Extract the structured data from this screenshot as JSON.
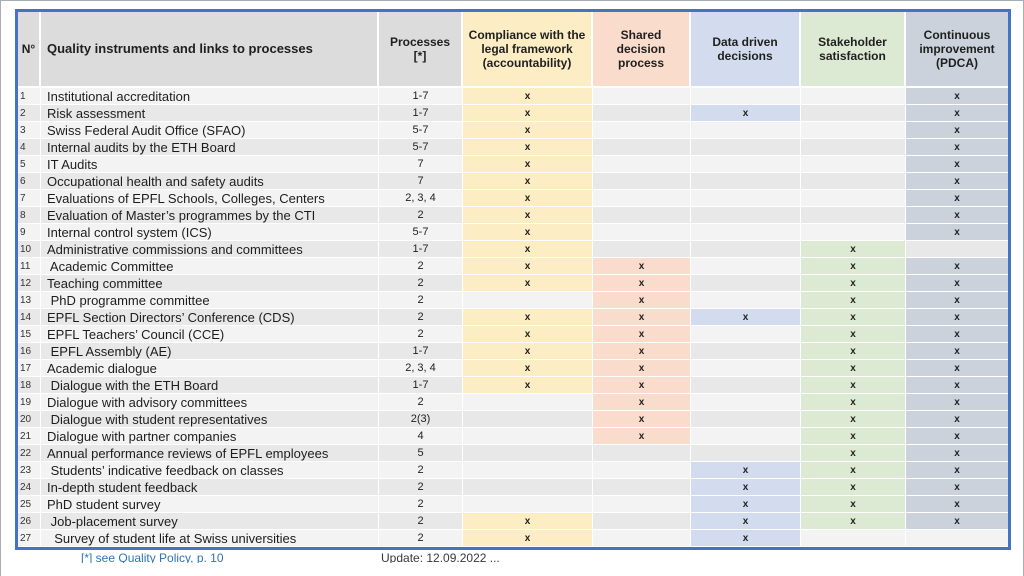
{
  "colors": {
    "table_border": "#4472C4",
    "link_blue": "#2E74B5",
    "compliance": "#FCEDC5",
    "shared": "#F9DCCB",
    "data_driven": "#D3DCEE",
    "stakeholder": "#DCEAD3",
    "continuous": "#CBD2DB"
  },
  "table": {
    "mark_glyph": "x",
    "columns": [
      {
        "key": "n",
        "label": "N°"
      },
      {
        "key": "name",
        "label": "Quality instruments and links to processes"
      },
      {
        "key": "processes",
        "label": "Processes\n[*]"
      },
      {
        "key": "compliance",
        "label": "Compliance with the legal framework (accountability)",
        "color": "#FCEDC5"
      },
      {
        "key": "shared",
        "label": "Shared decision process",
        "color": "#F9DCCB"
      },
      {
        "key": "data",
        "label": "Data driven decisions",
        "color": "#D3DCEE"
      },
      {
        "key": "stakeholder",
        "label": "Stakeholder satisfaction",
        "color": "#DCEAD3"
      },
      {
        "key": "continuous",
        "label": "Continuous improvement (PDCA)",
        "color": "#CBD2DB"
      }
    ],
    "rows": [
      {
        "n": "1",
        "name": "Institutional accreditation",
        "processes": "1-7",
        "marks": [
          1,
          0,
          0,
          0,
          1
        ]
      },
      {
        "n": "2",
        "name": "Risk assessment",
        "processes": "1-7",
        "marks": [
          1,
          0,
          1,
          0,
          1
        ]
      },
      {
        "n": "3",
        "name": "Swiss Federal Audit Office (SFAO)",
        "processes": "5-7",
        "marks": [
          1,
          0,
          0,
          0,
          1
        ]
      },
      {
        "n": "4",
        "name": "Internal audits by the ETH Board",
        "processes": "5-7",
        "marks": [
          1,
          0,
          0,
          0,
          1
        ]
      },
      {
        "n": "5",
        "name": "IT Audits",
        "processes": "7",
        "marks": [
          1,
          0,
          0,
          0,
          1
        ]
      },
      {
        "n": "6",
        "name": "Occupational health and safety audits",
        "processes": "7",
        "marks": [
          1,
          0,
          0,
          0,
          1
        ]
      },
      {
        "n": "7",
        "name": "Evaluations of EPFL Schools, Colleges, Centers",
        "processes": "2, 3, 4",
        "marks": [
          1,
          0,
          0,
          0,
          1
        ]
      },
      {
        "n": "8",
        "name": "Evaluation of Master’s programmes by the CTI",
        "processes": "2",
        "marks": [
          1,
          0,
          0,
          0,
          1
        ]
      },
      {
        "n": "9",
        "name": "Internal control system (ICS)",
        "processes": "5-7",
        "marks": [
          1,
          0,
          0,
          0,
          1
        ]
      },
      {
        "n": "10",
        "name": "Administrative commissions and committees",
        "processes": "1-7",
        "marks": [
          1,
          0,
          0,
          1,
          0
        ]
      },
      {
        "n": "11",
        "name": " Academic Committee",
        "processes": "2",
        "marks": [
          1,
          1,
          0,
          1,
          1
        ]
      },
      {
        "n": "12",
        "name": "Teaching committee",
        "processes": "2",
        "marks": [
          1,
          1,
          0,
          1,
          1
        ]
      },
      {
        "n": "13",
        "name": " PhD programme committee",
        "processes": "2",
        "marks": [
          0,
          1,
          0,
          1,
          1
        ]
      },
      {
        "n": "14",
        "name": "EPFL Section Directors’ Conference (CDS)",
        "processes": "2",
        "marks": [
          1,
          1,
          1,
          1,
          1
        ]
      },
      {
        "n": "15",
        "name": "EPFL Teachers’ Council (CCE)",
        "processes": "2",
        "marks": [
          1,
          1,
          0,
          1,
          1
        ]
      },
      {
        "n": "16",
        "name": " EPFL Assembly (AE)",
        "processes": "1-7",
        "marks": [
          1,
          1,
          0,
          1,
          1
        ]
      },
      {
        "n": "17",
        "name": "Academic dialogue",
        "processes": "2, 3, 4",
        "marks": [
          1,
          1,
          0,
          1,
          1
        ]
      },
      {
        "n": "18",
        "name": " Dialogue with the ETH Board",
        "processes": "1-7",
        "marks": [
          1,
          1,
          0,
          1,
          1
        ]
      },
      {
        "n": "19",
        "name": "Dialogue with advisory committees",
        "processes": "2",
        "marks": [
          0,
          1,
          0,
          1,
          1
        ]
      },
      {
        "n": "20",
        "name": " Dialogue with student representatives",
        "processes": "2(3)",
        "marks": [
          0,
          1,
          0,
          1,
          1
        ]
      },
      {
        "n": "21",
        "name": "Dialogue with partner companies",
        "processes": "4",
        "marks": [
          0,
          1,
          0,
          1,
          1
        ]
      },
      {
        "n": "22",
        "name": "Annual performance reviews of EPFL employees",
        "processes": "5",
        "marks": [
          0,
          0,
          0,
          1,
          1
        ]
      },
      {
        "n": "23",
        "name": " Students’ indicative feedback on classes",
        "processes": "2",
        "marks": [
          0,
          0,
          1,
          1,
          1
        ]
      },
      {
        "n": "24",
        "name": "In-depth student feedback",
        "processes": "2",
        "marks": [
          0,
          0,
          1,
          1,
          1
        ]
      },
      {
        "n": "25",
        "name": "PhD student survey",
        "processes": "2",
        "marks": [
          0,
          0,
          1,
          1,
          1
        ]
      },
      {
        "n": "26",
        "name": " Job-placement survey",
        "processes": "2",
        "marks": [
          1,
          0,
          1,
          1,
          1
        ]
      },
      {
        "n": "27",
        "name": "  Survey of student life at Swiss universities",
        "processes": "2",
        "marks": [
          1,
          0,
          1,
          0,
          0
        ]
      }
    ]
  },
  "footer": {
    "footnote": "[*] see Quality Policy, p. 10",
    "update": "Update: 12.09.2022  ..."
  }
}
